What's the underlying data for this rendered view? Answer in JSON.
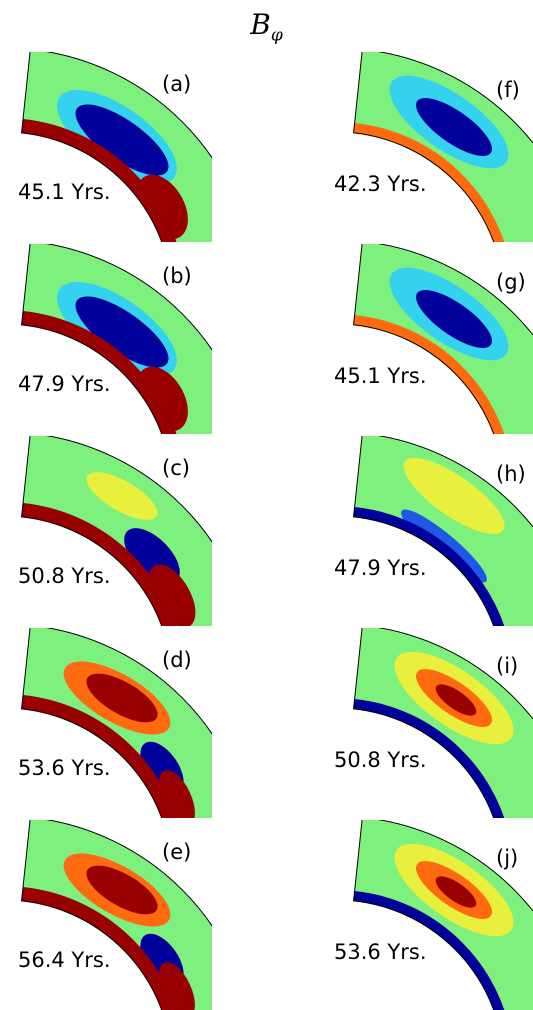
{
  "title": {
    "symbol": "B",
    "subscript": "φ"
  },
  "colors": {
    "background_field": "#7ef07e",
    "strong_negative": "#00009a",
    "negative": "#1f58e6",
    "weak_negative": "#35d2f0",
    "weak_positive": "#e8ef3c",
    "positive": "#ff6a10",
    "strong_positive": "#990000",
    "outline": "#000000"
  },
  "panels": [
    {
      "letter": "(a)",
      "time": "45.1 Yrs.",
      "pattern": "neg-top-pos-bottom"
    },
    {
      "letter": "(b)",
      "time": "47.9 Yrs.",
      "pattern": "neg-top-pos-bottom"
    },
    {
      "letter": "(c)",
      "time": "50.8 Yrs.",
      "pattern": "weakpos-top-neg-mid"
    },
    {
      "letter": "(d)",
      "time": "53.6 Yrs.",
      "pattern": "pos-top-neg-mid"
    },
    {
      "letter": "(e)",
      "time": "56.4 Yrs.",
      "pattern": "pos-top-neg-mid"
    },
    {
      "letter": "(f)",
      "time": "42.3 Yrs.",
      "pattern": "neg-band"
    },
    {
      "letter": "(g)",
      "time": "45.1 Yrs.",
      "pattern": "neg-band"
    },
    {
      "letter": "(h)",
      "time": "47.9 Yrs.",
      "pattern": "weakpos-band"
    },
    {
      "letter": "(i)",
      "time": "50.8 Yrs.",
      "pattern": "pos-band"
    },
    {
      "letter": "(j)",
      "time": "53.6 Yrs.",
      "pattern": "pos-band"
    }
  ]
}
